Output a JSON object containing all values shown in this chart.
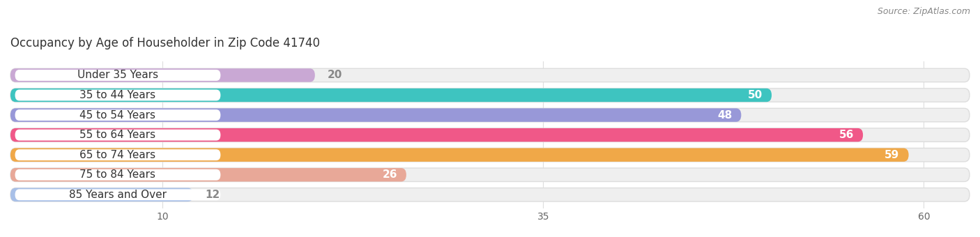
{
  "title": "Occupancy by Age of Householder in Zip Code 41740",
  "source": "Source: ZipAtlas.com",
  "categories": [
    "Under 35 Years",
    "35 to 44 Years",
    "45 to 54 Years",
    "55 to 64 Years",
    "65 to 74 Years",
    "75 to 84 Years",
    "85 Years and Over"
  ],
  "values": [
    20,
    50,
    48,
    56,
    59,
    26,
    12
  ],
  "bar_colors": [
    "#c9a8d4",
    "#3ec4c0",
    "#9898d8",
    "#f05888",
    "#f0a848",
    "#e8a898",
    "#a8c0e8"
  ],
  "bar_bg_color": "#efefef",
  "bar_border_color": "#dddddd",
  "value_label_color_inside": "#ffffff",
  "value_label_color_outside": "#888888",
  "xlim_max": 63,
  "xticks": [
    10,
    35,
    60
  ],
  "title_fontsize": 12,
  "source_fontsize": 9,
  "label_fontsize": 11,
  "bar_label_fontsize": 11,
  "bar_height": 0.68,
  "background_color": "#ffffff",
  "inside_threshold": 22,
  "label_badge_color": "#ffffff",
  "grid_color": "#dddddd"
}
